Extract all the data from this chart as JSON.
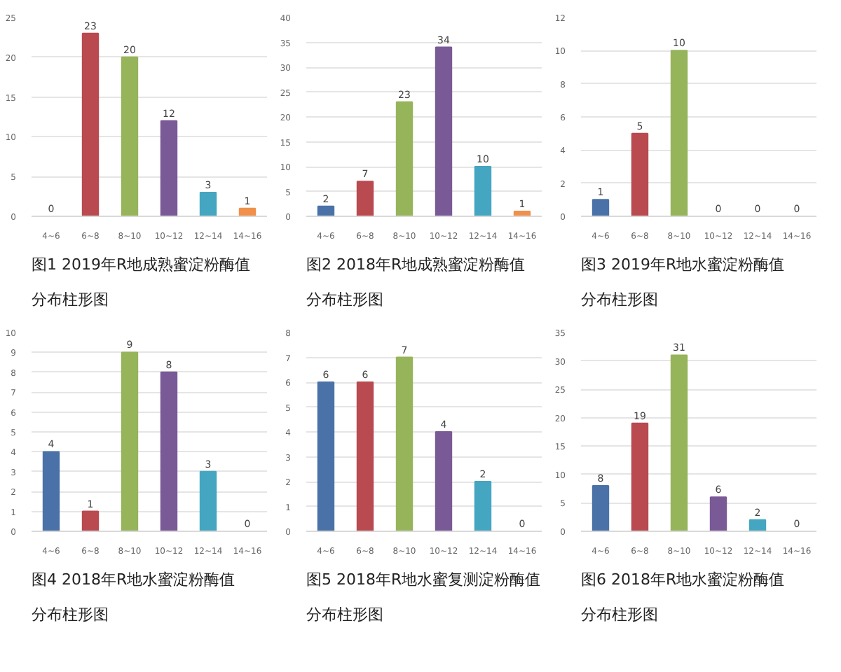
{
  "chart_data": [
    {
      "type": "bar",
      "title": "图1 2019年R地成熟蜜淀粉酶值",
      "subtitle": "分布柱形图",
      "categories": [
        "4~6",
        "6~8",
        "8~10",
        "10~12",
        "12~14",
        "14~16"
      ],
      "values": [
        0,
        23,
        20,
        12,
        3,
        1
      ],
      "colors": [
        "#4a72a8",
        "#b84a50",
        "#96b45a",
        "#7a5a96",
        "#44a6c0",
        "#f0904a"
      ],
      "ylim": [
        0,
        25
      ],
      "yticks": [
        0,
        5,
        10,
        15,
        20,
        25
      ],
      "grid": "y",
      "data_labels": true
    },
    {
      "type": "bar",
      "title": "图2 2018年R地成熟蜜淀粉酶值",
      "subtitle": "分布柱形图",
      "categories": [
        "4~6",
        "6~8",
        "8~10",
        "10~12",
        "12~14",
        "14~16"
      ],
      "values": [
        2,
        7,
        23,
        34,
        10,
        1
      ],
      "colors": [
        "#4a72a8",
        "#b84a50",
        "#96b45a",
        "#7a5a96",
        "#44a6c0",
        "#f0904a"
      ],
      "ylim": [
        0,
        40
      ],
      "yticks": [
        0,
        5,
        10,
        15,
        20,
        25,
        30,
        35,
        40
      ],
      "grid": "y",
      "data_labels": true
    },
    {
      "type": "bar",
      "title": "图3 2019年R地水蜜淀粉酶值",
      "subtitle": "分布柱形图",
      "categories": [
        "4~6",
        "6~8",
        "8~10",
        "10~12",
        "12~14",
        "14~16"
      ],
      "values": [
        1,
        5,
        10,
        0,
        0,
        0
      ],
      "colors": [
        "#4a72a8",
        "#b84a50",
        "#96b45a",
        "#7a5a96",
        "#44a6c0",
        "#f0904a"
      ],
      "ylim": [
        0,
        12
      ],
      "yticks": [
        0,
        2,
        4,
        6,
        8,
        10,
        12
      ],
      "grid": "y",
      "data_labels": true
    },
    {
      "type": "bar",
      "title": "图4 2018年R地水蜜淀粉酶值",
      "subtitle": "分布柱形图",
      "categories": [
        "4~6",
        "6~8",
        "8~10",
        "10~12",
        "12~14",
        "14~16"
      ],
      "values": [
        4,
        1,
        9,
        8,
        3,
        0
      ],
      "colors": [
        "#4a72a8",
        "#b84a50",
        "#96b45a",
        "#7a5a96",
        "#44a6c0",
        "#f0904a"
      ],
      "ylim": [
        0,
        10
      ],
      "yticks": [
        0,
        1,
        2,
        3,
        4,
        5,
        6,
        7,
        8,
        9,
        10
      ],
      "grid": "y",
      "data_labels": true
    },
    {
      "type": "bar",
      "title": "图5 2018年R地水蜜复测淀粉酶值",
      "subtitle": "分布柱形图",
      "categories": [
        "4~6",
        "6~8",
        "8~10",
        "10~12",
        "12~14",
        "14~16"
      ],
      "values": [
        6,
        6,
        7,
        4,
        2,
        0
      ],
      "colors": [
        "#4a72a8",
        "#b84a50",
        "#96b45a",
        "#7a5a96",
        "#44a6c0",
        "#f0904a"
      ],
      "ylim": [
        0,
        8
      ],
      "yticks": [
        0,
        1,
        2,
        3,
        4,
        5,
        6,
        7,
        8
      ],
      "grid": "y",
      "data_labels": true
    },
    {
      "type": "bar",
      "title": "图6 2018年R地水蜜淀粉酶值",
      "subtitle": "分布柱形图",
      "categories": [
        "4~6",
        "6~8",
        "8~10",
        "10~12",
        "12~14",
        "14~16"
      ],
      "values": [
        8,
        19,
        31,
        6,
        2,
        0
      ],
      "colors": [
        "#4a72a8",
        "#b84a50",
        "#96b45a",
        "#7a5a96",
        "#44a6c0",
        "#f0904a"
      ],
      "ylim": [
        0,
        35
      ],
      "yticks": [
        0,
        5,
        10,
        15,
        20,
        25,
        30,
        35
      ],
      "grid": "y",
      "data_labels": true
    }
  ]
}
